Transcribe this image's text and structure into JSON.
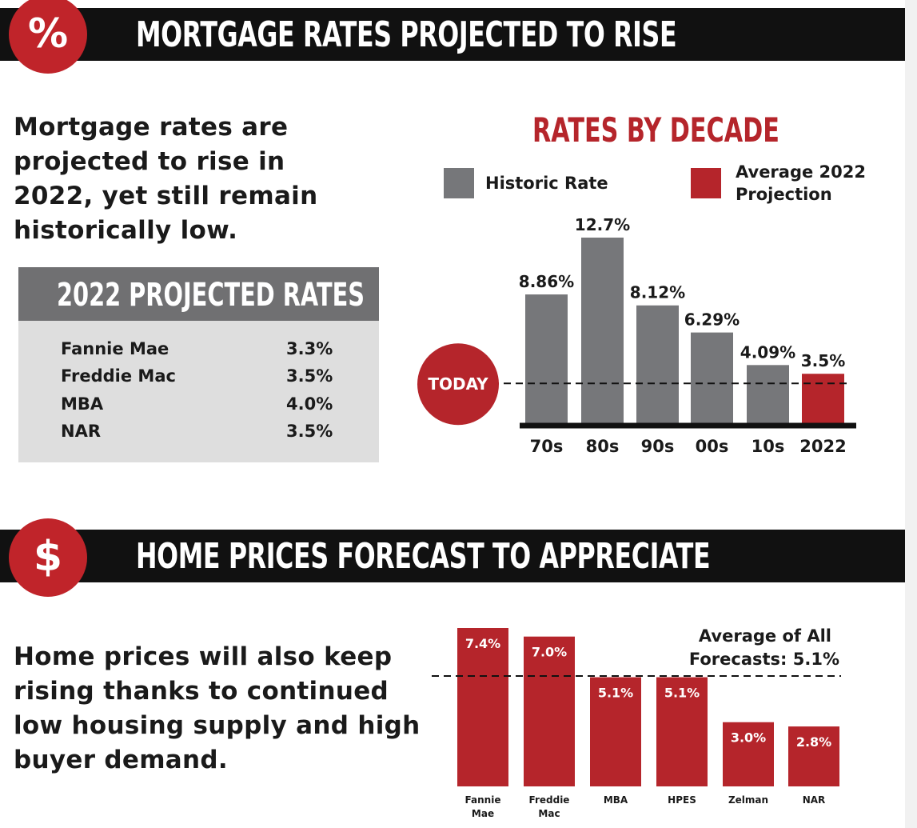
{
  "section1": {
    "icon_glyph": "%",
    "title": "MORTGAGE RATES PROJECTED TO RISE",
    "intro_lines": [
      "Mortgage rates are",
      "projected to rise in",
      "2022, yet still remain",
      "historically low."
    ]
  },
  "projected_rates": {
    "title": "2022 PROJECTED RATES",
    "rows": [
      {
        "name": "Fannie Mae",
        "value": "3.3%"
      },
      {
        "name": "Freddie Mac",
        "value": "3.5%"
      },
      {
        "name": "MBA",
        "value": "4.0%"
      },
      {
        "name": "NAR",
        "value": "3.5%"
      }
    ]
  },
  "rates_legend": {
    "historic": "Historic Rate",
    "projection_line1": "Average 2022",
    "projection_line2": "Projection"
  },
  "today_label": "TODAY",
  "section2": {
    "icon_glyph": "$",
    "title": "HOME PRICES FORECAST TO APPRECIATE",
    "intro_lines": [
      "Home prices will also keep",
      "rising thanks to continued",
      "low housing supply and high",
      "buyer demand."
    ]
  },
  "colors": {
    "red": "#b5252b",
    "gray": "#76777a",
    "black": "#111111"
  },
  "chart_data": [
    {
      "type": "bar",
      "title": "RATES BY DECADE",
      "categories": [
        "70s",
        "80s",
        "90s",
        "00s",
        "10s",
        "2022"
      ],
      "values": [
        8.86,
        12.7,
        8.12,
        6.29,
        4.09,
        3.5
      ],
      "labels": [
        "8.86%",
        "12.7%",
        "8.12%",
        "6.29%",
        "4.09%",
        "3.5%"
      ],
      "series_kind": [
        "historic",
        "historic",
        "historic",
        "historic",
        "historic",
        "projection"
      ],
      "reference_value": 3.5,
      "ylim": [
        0,
        12.7
      ]
    },
    {
      "type": "bar",
      "title": "",
      "categories": [
        [
          "Fannie",
          "Mae"
        ],
        [
          "Freddie",
          "Mac"
        ],
        [
          "MBA"
        ],
        [
          "HPES"
        ],
        [
          "Zelman"
        ],
        [
          "NAR"
        ]
      ],
      "values": [
        7.4,
        7.0,
        5.1,
        5.1,
        3.0,
        2.8
      ],
      "labels": [
        "7.4%",
        "7.0%",
        "5.1%",
        "5.1%",
        "3.0%",
        "2.8%"
      ],
      "reference_value": 5.1,
      "reference_label_lines": [
        "Average of All",
        "Forecasts: 5.1%"
      ],
      "ylim": [
        0,
        7.4
      ]
    }
  ]
}
